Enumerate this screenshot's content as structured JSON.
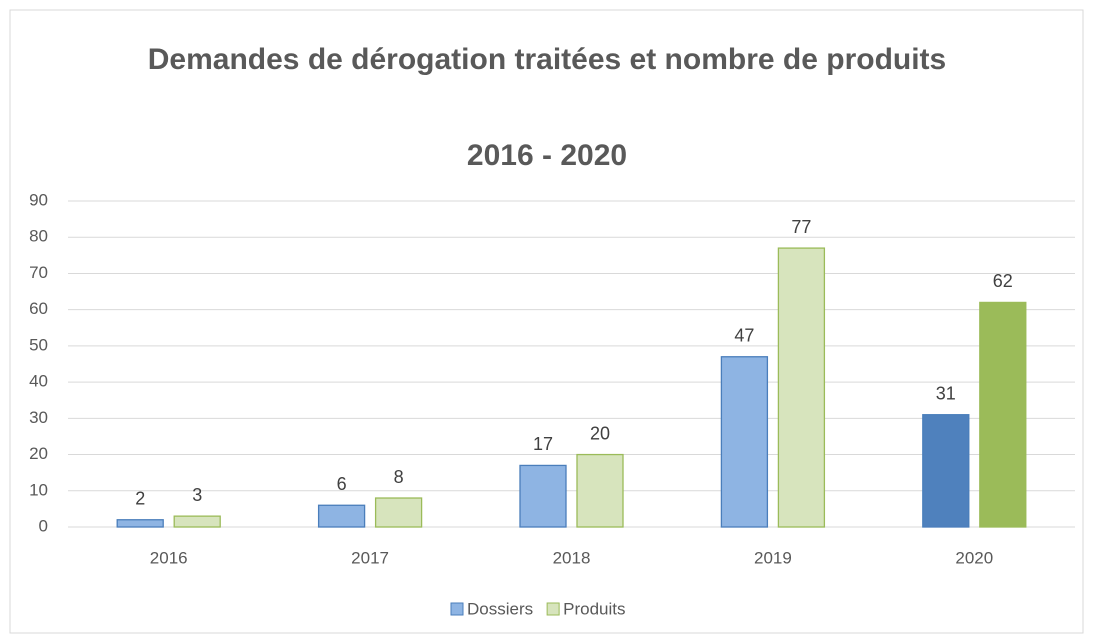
{
  "chart_data": {
    "type": "bar",
    "title": "Demandes de dérogation traitées et nombre de produits",
    "subtitle": "2016 - 2020",
    "categories": [
      "2016",
      "2017",
      "2018",
      "2019",
      "2020"
    ],
    "series": [
      {
        "name": "Dossiers",
        "color": "#8eb4e3",
        "edge_color": "#4a7ebb",
        "colors": [
          "#8eb4e3",
          "#8eb4e3",
          "#8eb4e3",
          "#8eb4e3",
          "#4f81bd"
        ],
        "values": [
          2,
          6,
          17,
          47,
          31
        ]
      },
      {
        "name": "Produits",
        "color": "#d7e4bd",
        "edge_color": "#9bbb59",
        "colors": [
          "#d7e4bd",
          "#d7e4bd",
          "#d7e4bd",
          "#d7e4bd",
          "#9bbb59"
        ],
        "values": [
          3,
          8,
          20,
          77,
          62
        ]
      }
    ],
    "ylim": [
      0,
      90
    ],
    "yticks": [
      0,
      10,
      20,
      30,
      40,
      50,
      60,
      70,
      80,
      90
    ],
    "grid": true,
    "legend": "bottom"
  }
}
